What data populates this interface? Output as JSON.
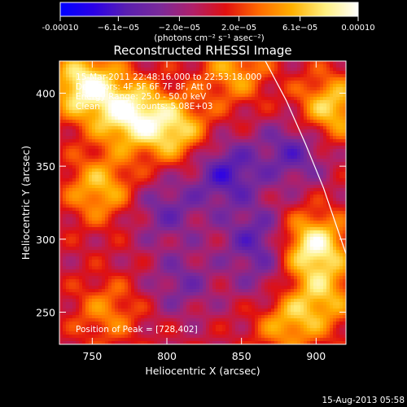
{
  "chart_data": {
    "type": "heatmap",
    "title": "Reconstructed RHESSI Image",
    "xlabel": "Heliocentric X (arcsec)",
    "ylabel": "Heliocentric Y (arcsec)",
    "xlim": [
      728,
      920
    ],
    "ylim": [
      228,
      422
    ],
    "x_ticks": [
      750,
      800,
      850,
      900
    ],
    "y_ticks": [
      250,
      300,
      350,
      400
    ],
    "colorbar": {
      "range": [
        -0.0001,
        0.0001
      ],
      "ticks": [
        -0.0001,
        -6.1e-05,
        -2e-05,
        2e-05,
        6.1e-05,
        0.0001
      ],
      "tick_labels": [
        "-0.00010",
        "−6.1e−05",
        "−2.0e−05",
        "2.0e−05",
        "6.1e−05",
        "0.00010"
      ],
      "units_label": "(photons cm⁻² s⁻¹ asec⁻²)",
      "colormap_stops": [
        "#0000ff",
        "#2a00e8",
        "#5a1fb0",
        "#7a2a9a",
        "#b0206a",
        "#e01010",
        "#ff6a00",
        "#ffb000",
        "#fff080",
        "#ffffff"
      ]
    },
    "annotations": {
      "time_range": "15-Mar-2011 22:48:16.000 to 22:53:18.000",
      "detectors": "Detectors: 4F 5F 6F 7F 8F, Att 0",
      "energy_range": "Energy Range: 25.0 - 50.0 keV",
      "method": "Clean     Total counts: 5.08E+03",
      "peak": "Position of Peak = [728,402]"
    },
    "features": {
      "peaks": [
        {
          "x": 745,
          "y": 405,
          "intensity": 9e-05
        },
        {
          "x": 775,
          "y": 385,
          "intensity": 8.5e-05
        },
        {
          "x": 805,
          "y": 375,
          "intensity": 7e-05
        },
        {
          "x": 898,
          "y": 295,
          "intensity": 9e-05
        },
        {
          "x": 910,
          "y": 390,
          "intensity": 7e-05
        },
        {
          "x": 755,
          "y": 335,
          "intensity": 6e-05
        },
        {
          "x": 845,
          "y": 415,
          "intensity": 5e-05
        },
        {
          "x": 880,
          "y": 245,
          "intensity": 6e-05
        },
        {
          "x": 760,
          "y": 250,
          "intensity": 4e-05
        },
        {
          "x": 905,
          "y": 260,
          "intensity": 5e-05
        }
      ],
      "troughs": [
        {
          "x": 840,
          "y": 345,
          "intensity": -6e-05
        },
        {
          "x": 885,
          "y": 360,
          "intensity": -5e-05
        },
        {
          "x": 860,
          "y": 300,
          "intensity": -5e-05
        },
        {
          "x": 800,
          "y": 320,
          "intensity": -4e-05
        },
        {
          "x": 810,
          "y": 270,
          "intensity": -3.5e-05
        },
        {
          "x": 870,
          "y": 265,
          "intensity": -3e-05
        }
      ],
      "limb_curve": [
        [
          866,
          422
        ],
        [
          880,
          395
        ],
        [
          893,
          365
        ],
        [
          905,
          335
        ],
        [
          915,
          305
        ],
        [
          920,
          290
        ]
      ]
    },
    "footer_timestamp": "15-Aug-2013 05:58"
  }
}
